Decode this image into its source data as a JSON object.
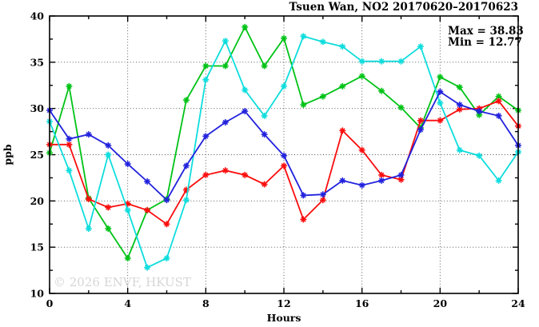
{
  "title": "Tsuen Wan, NO2 20170620–20170623",
  "annotations": {
    "max_label": "Max = 38.83",
    "min_label": "Min = 12.77"
  },
  "watermark": "© 2026 ENVF, HKUST",
  "chart_data": {
    "type": "line",
    "title": "Tsuen Wan, NO2 20170620–20170623",
    "xlabel": "Hours",
    "ylabel": "ppb",
    "xlim": [
      0,
      24
    ],
    "ylim": [
      10,
      40
    ],
    "xticks": [
      0,
      4,
      8,
      12,
      16,
      20,
      24
    ],
    "yticks": [
      10,
      15,
      20,
      25,
      30,
      35,
      40
    ],
    "minor_xticks": [
      2,
      6,
      10,
      14,
      18,
      22
    ],
    "minor_yticks": [
      12.5,
      17.5,
      22.5,
      27.5,
      32.5,
      37.5
    ],
    "grid": "dotted-at-major-ticks",
    "legend": "none",
    "marker": "star",
    "stats": {
      "max": 38.83,
      "min": 12.77
    },
    "x": [
      0,
      1,
      2,
      3,
      4,
      5,
      6,
      7,
      8,
      9,
      10,
      11,
      12,
      13,
      14,
      15,
      16,
      17,
      18,
      19,
      20,
      21,
      22,
      23,
      24
    ],
    "series": [
      {
        "name": "series-green",
        "color": "#00c316",
        "values": [
          25.2,
          32.4,
          20.3,
          17.0,
          13.8,
          19.0,
          20.2,
          30.9,
          34.6,
          34.6,
          38.8,
          34.6,
          37.6,
          30.4,
          31.3,
          32.4,
          33.5,
          31.9,
          30.1,
          27.9,
          33.4,
          32.3,
          29.3,
          31.3,
          29.8
        ]
      },
      {
        "name": "series-red",
        "color": "#fb0d0d",
        "values": [
          26.1,
          26.1,
          20.2,
          19.3,
          19.7,
          19.0,
          17.5,
          21.2,
          22.8,
          23.3,
          22.8,
          21.8,
          23.8,
          18.0,
          20.1,
          27.6,
          25.5,
          22.8,
          22.3,
          28.7,
          28.7,
          29.9,
          30.0,
          30.8,
          28.1
        ]
      },
      {
        "name": "series-cyan",
        "color": "#0fdddd",
        "values": [
          28.6,
          23.3,
          17.0,
          25.0,
          19.0,
          12.8,
          13.8,
          20.1,
          33.1,
          37.3,
          32.0,
          29.2,
          32.4,
          37.8,
          37.2,
          36.7,
          35.1,
          35.1,
          35.1,
          36.7,
          30.6,
          25.5,
          24.9,
          22.2,
          25.3
        ]
      },
      {
        "name": "series-blue",
        "color": "#2222dd",
        "values": [
          29.8,
          26.7,
          27.2,
          26.0,
          24.0,
          22.1,
          20.1,
          23.8,
          27.0,
          28.5,
          29.7,
          27.2,
          24.9,
          20.6,
          20.7,
          22.2,
          21.7,
          22.2,
          22.8,
          27.7,
          31.8,
          30.4,
          29.7,
          29.2,
          26.0
        ]
      }
    ]
  }
}
